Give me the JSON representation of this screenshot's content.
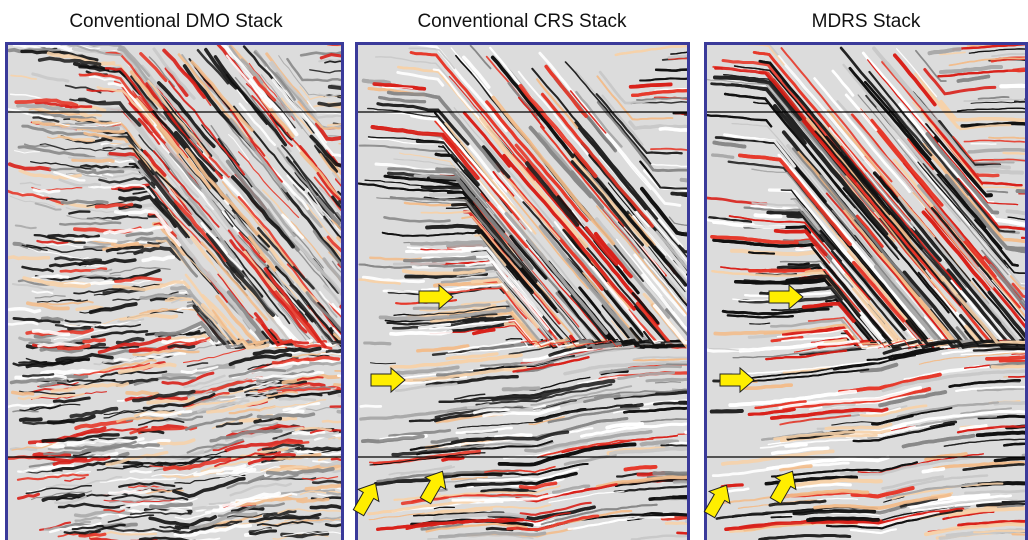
{
  "panels": [
    {
      "title": "Conventional DMO Stack"
    },
    {
      "title": "Conventional CRS Stack"
    },
    {
      "title": "MDRS Stack"
    }
  ]
}
